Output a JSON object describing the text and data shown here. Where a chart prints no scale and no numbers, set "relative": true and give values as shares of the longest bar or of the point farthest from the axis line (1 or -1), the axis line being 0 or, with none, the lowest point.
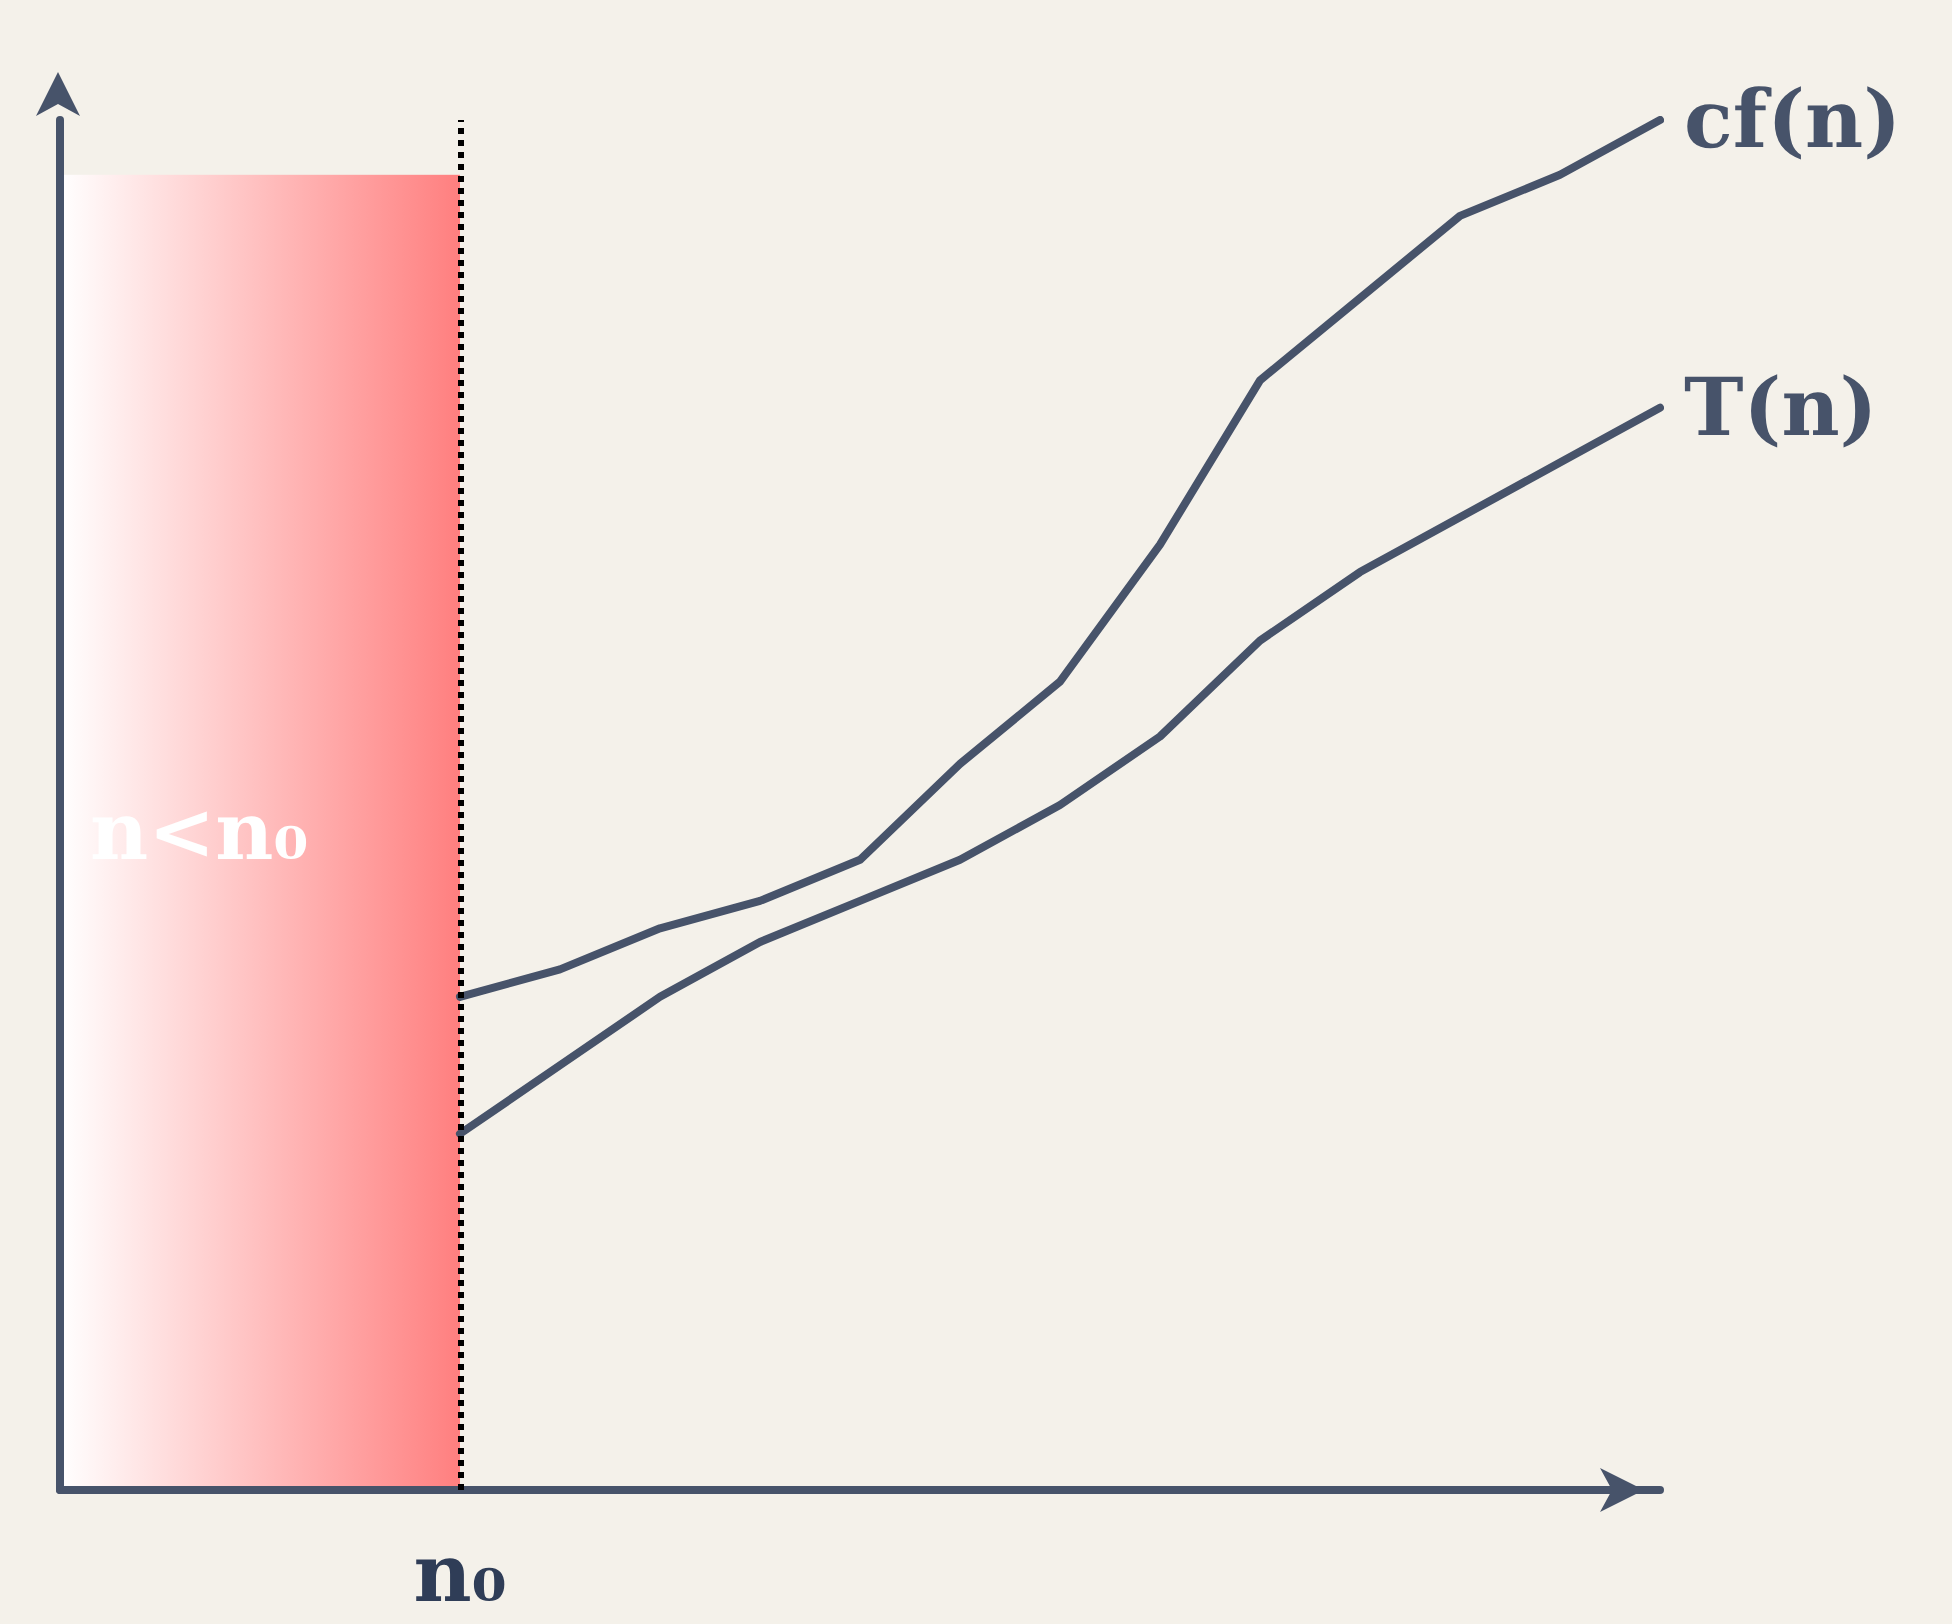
{
  "chart_data": {
    "type": "line",
    "relative": true,
    "categories": [
      null,
      null,
      null,
      null,
      null,
      null,
      null,
      null,
      null,
      null,
      null,
      null,
      null,
      null,
      null,
      null,
      null
    ],
    "series": [
      {
        "name": "cf(n)",
        "color": "#47536a",
        "values": [
          null,
          null,
          null,
          null,
          0.36,
          0.38,
          0.41,
          0.43,
          0.46,
          0.53,
          0.59,
          0.69,
          0.81,
          0.87,
          0.93,
          0.96,
          1
        ]
      },
      {
        "name": "T(n)",
        "color": "#47536a",
        "values": [
          null,
          null,
          null,
          null,
          0.26,
          0.31,
          0.36,
          0.4,
          0.43,
          0.46,
          0.5,
          0.55,
          0.62,
          0.67,
          0.71,
          0.75,
          0.79
        ]
      }
    ],
    "annotations": [
      "n<n₀"
    ],
    "ref_lines": [
      {
        "axis": "x",
        "label": "n₀",
        "color": "#000000",
        "line_style": "dotted"
      }
    ],
    "legend": false,
    "grid": false,
    "marker": "none",
    "line_style": "solid"
  }
}
